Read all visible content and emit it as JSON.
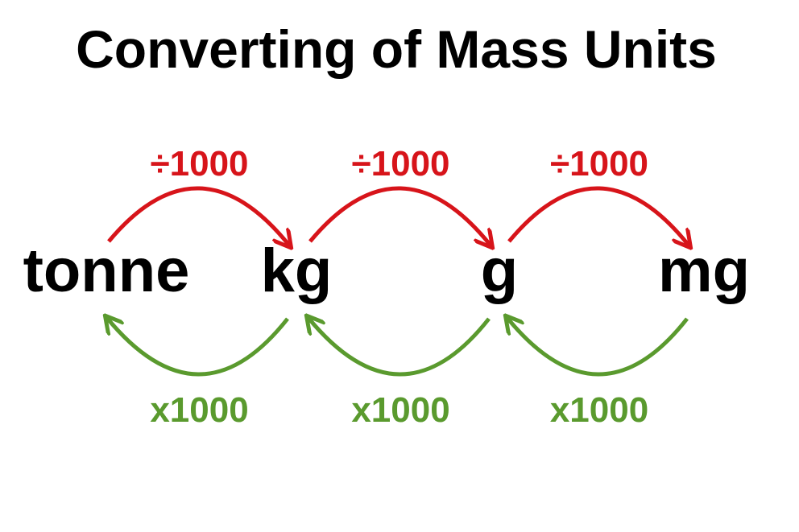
{
  "title": "Converting of Mass Units",
  "units": [
    {
      "label": "tonne"
    },
    {
      "label": "kg"
    },
    {
      "label": "g"
    },
    {
      "label": "mg"
    }
  ],
  "divide_arrows": [
    {
      "label": "÷1000"
    },
    {
      "label": "÷1000"
    },
    {
      "label": "÷1000"
    }
  ],
  "multiply_arrows": [
    {
      "label": "x1000"
    },
    {
      "label": "x1000"
    },
    {
      "label": "x1000"
    }
  ]
}
